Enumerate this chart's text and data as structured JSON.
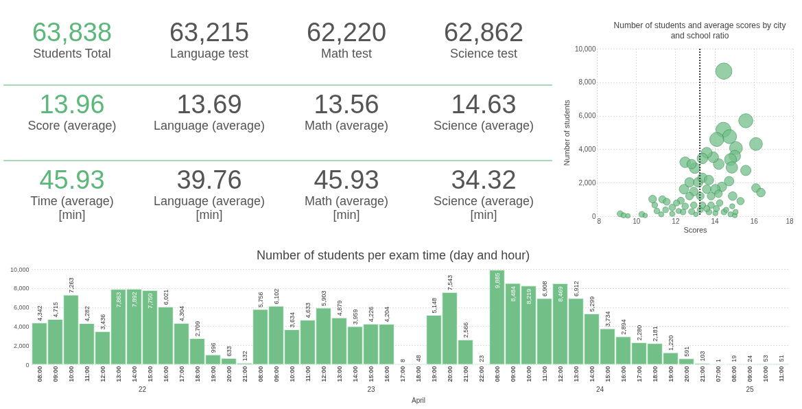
{
  "chart_data": [
    {
      "type": "other",
      "annotations": [
        "63,838",
        "Students Total",
        "63,215",
        "Language test",
        "62,220",
        "Math test",
        "62,862",
        "Science test",
        "13.96",
        "Score (average)",
        "13.69",
        "Language (average)",
        "13.56",
        "Math (average)",
        "14.63",
        "Science (average)",
        "45.93",
        "Time (average)\n[min]",
        "39.76",
        "Language (average)\n[min]",
        "45.93",
        "Math (average)\n[min]",
        "34.32",
        "Science (average)\n[min]"
      ]
    },
    {
      "type": "bubble",
      "title": "Number of students and average scores by city and school ratio",
      "xlabel": "Scores",
      "ylabel": "Number of students",
      "xlim": [
        8,
        18
      ],
      "xticks": [
        8,
        10,
        12,
        14,
        16,
        18
      ],
      "ylim": [
        0,
        10000
      ],
      "yticks": [
        0,
        {
          "value": 2000,
          "label": "2,000"
        },
        {
          "value": 4000,
          "label": "4,000"
        },
        {
          "value": 6000,
          "label": "6,000"
        },
        {
          "value": 8000,
          "label": "8,000"
        },
        {
          "value": 10000,
          "label": "10,000"
        }
      ],
      "grid": true,
      "ref_lines": [
        {
          "axis": "x",
          "value": 13.25,
          "line_style": "dotted",
          "color": "#333333"
        }
      ],
      "series": [
        {
          "color": "#74c08a",
          "x": [
            14.47,
            15.59,
            16.11,
            14.45,
            14.76,
            14.11,
            15.09,
            15.03,
            14.81,
            14.88,
            15.59,
            14.21,
            13.93,
            13.6,
            13.38,
            12.5,
            12.99,
            12.83,
            16.11,
            16.36,
            14.74,
            14.37,
            14.92,
            15.32,
            10.84,
            11.34,
            11.56,
            9.19,
            9.36,
            9.58,
            10.29,
            10.46,
            12.44,
            12.72,
            13.16,
            13.38,
            13.71,
            12.94,
            13.6,
            14.04,
            14.2,
            13.82,
            13.27,
            12.72,
            12.28,
            11.84,
            12.06,
            11.5,
            11.06,
            10.95,
            11.28,
            11.84,
            12.39,
            12.83,
            13.27,
            13.71,
            14.04,
            14.48,
            14.81,
            15.03,
            14.9,
            14.26,
            13.82,
            13.38,
            12.94,
            12.5,
            12.17,
            13.05,
            13.6,
            14.09,
            14.59,
            15.07
          ],
          "values": [
            8660,
            5700,
            4310,
            5160,
            4750,
            4580,
            4070,
            3590,
            3380,
            2910,
            2730,
            3110,
            3520,
            3790,
            3450,
            3220,
            2870,
            3110,
            1680,
            1410,
            2090,
            1750,
            1200,
            900,
            1020,
            1000,
            860,
            140,
            50,
            20,
            110,
            40,
            1610,
            2020,
            2020,
            2290,
            2160,
            1470,
            1610,
            1610,
            1340,
            1200,
            1200,
            1200,
            930,
            520,
            790,
            380,
            310,
            660,
            110,
            140,
            250,
            270,
            380,
            250,
            180,
            250,
            110,
            40,
            590,
            790,
            660,
            660,
            660,
            590,
            310,
            110,
            450,
            450,
            380,
            250
          ],
          "sizes": [
            1,
            0.75,
            0.62,
            0.85,
            0.75,
            0.75,
            0.62,
            0.5,
            0.54,
            0.5,
            0.4,
            0.43,
            0.43,
            0.43,
            0.43,
            0.43,
            0.43,
            0.34,
            0.28,
            0.28,
            0.34,
            0.34,
            0.28,
            0.2,
            0.22,
            0.2,
            0.18,
            0.14,
            0.1,
            0.08,
            0.12,
            0.08,
            0.34,
            0.34,
            0.34,
            0.34,
            0.34,
            0.28,
            0.28,
            0.34,
            0.22,
            0.22,
            0.22,
            0.22,
            0.18,
            0.16,
            0.14,
            0.12,
            0.12,
            0.12,
            0.1,
            0.1,
            0.12,
            0.14,
            0.14,
            0.12,
            0.1,
            0.12,
            0.1,
            0.08,
            0.1,
            0.16,
            0.16,
            0.16,
            0.16,
            0.16,
            0.1,
            0.08,
            0.14,
            0.14,
            0.1,
            0.1
          ]
        }
      ]
    },
    {
      "type": "bar",
      "xlabel": "22",
      "categories": [
        "08:00",
        "09:00",
        "10:00",
        "11:00",
        "12:00",
        "13:00",
        "14:00",
        "15:00",
        "16:00",
        "17:00",
        "18:00",
        "19:00",
        "20:00",
        "21:00"
      ],
      "values": [
        4342,
        4715,
        7263,
        4282,
        3436,
        7863,
        7892,
        7750,
        6021,
        4304,
        2709,
        996,
        633,
        132
      ],
      "value_labels": [
        "4,342",
        "4,715",
        "7,263",
        "4,282",
        "3,436",
        "7,863",
        "7,892",
        "7,750",
        "6,021",
        "4,304",
        "2,709",
        "996",
        "633",
        "132"
      ],
      "color": "#72bf87",
      "ylim": [
        0,
        10000
      ],
      "yticks": [
        0,
        {
          "value": 2000,
          "label": "2,000"
        },
        {
          "value": 4000,
          "label": "4,000"
        },
        {
          "value": 6000,
          "label": "6,000"
        },
        {
          "value": 8000,
          "label": "8,000"
        },
        {
          "value": 10000,
          "label": "10,000"
        }
      ],
      "grid": "y"
    },
    {
      "type": "bar",
      "title": "Number of students per exam time (day and hour)",
      "annotations": [
        "April"
      ],
      "xlabel": "23",
      "categories": [
        "08:00",
        "09:00",
        "10:00",
        "11:00",
        "12:00",
        "13:00",
        "14:00",
        "15:00",
        "16:00",
        "17:00",
        "18:00",
        "19:00",
        "20:00",
        "21:00",
        "22:00"
      ],
      "values": [
        5756,
        6102,
        3634,
        4633,
        5903,
        4879,
        3959,
        4226,
        4204,
        8,
        48,
        5148,
        7543,
        2566,
        23
      ],
      "value_labels": [
        "5,756",
        "6,102",
        "3,634",
        "4,633",
        "5,903",
        "4,879",
        "3,959",
        "4,226",
        "4,204",
        "8",
        "48",
        "5,148",
        "7,543",
        "2,566",
        "23"
      ],
      "color": "#72bf87",
      "ylim": [
        0,
        10000
      ],
      "yticks": [
        {
          "value": 0,
          "label": null
        },
        {
          "value": 2000,
          "label": null
        },
        {
          "value": 4000,
          "label": null
        },
        {
          "value": 6000,
          "label": null
        },
        {
          "value": 8000,
          "label": null
        },
        {
          "value": 10000,
          "label": null
        }
      ],
      "grid": "y",
      "tick_labels": "x"
    },
    {
      "type": "bar",
      "xlabel": "24",
      "categories": [
        "08:00",
        "09:00",
        "10:00",
        "11:00",
        "12:00",
        "13:00",
        "14:00",
        "15:00",
        "16:00",
        "17:00",
        "18:00",
        "19:00",
        "20:00",
        "21:00"
      ],
      "values": [
        9885,
        8484,
        8219,
        6908,
        8469,
        6912,
        5299,
        3734,
        2894,
        2280,
        2181,
        1220,
        591,
        103
      ],
      "value_labels": [
        "9,885",
        "8,484",
        "8,219",
        "6,908",
        "8,469",
        "6,912",
        "5,299",
        "3,734",
        "2,894",
        "2,280",
        "2,181",
        "1,220",
        "591",
        "103"
      ],
      "color": "#72bf87",
      "ylim": [
        0,
        10000
      ],
      "yticks": [
        {
          "value": 0,
          "label": null
        },
        {
          "value": 2000,
          "label": null
        },
        {
          "value": 4000,
          "label": null
        },
        {
          "value": 6000,
          "label": null
        },
        {
          "value": 8000,
          "label": null
        },
        {
          "value": 10000,
          "label": null
        }
      ],
      "grid": "y",
      "tick_labels": "x"
    },
    {
      "type": "bar",
      "xlabel": "25",
      "categories": [
        "07:00",
        "08:00",
        "09:00",
        "10:00",
        "11:00"
      ],
      "values": [
        1,
        19,
        24,
        53,
        51
      ],
      "value_labels": [
        "1",
        "19",
        "24",
        "53",
        "51"
      ],
      "color": "#72bf87",
      "ylim": [
        0,
        10000
      ],
      "yticks": [
        {
          "value": 0,
          "label": null
        },
        {
          "value": 2000,
          "label": null
        },
        {
          "value": 4000,
          "label": null
        },
        {
          "value": 6000,
          "label": null
        },
        {
          "value": 8000,
          "label": null
        },
        {
          "value": 10000,
          "label": null
        }
      ],
      "grid": "y",
      "tick_labels": "x"
    }
  ]
}
